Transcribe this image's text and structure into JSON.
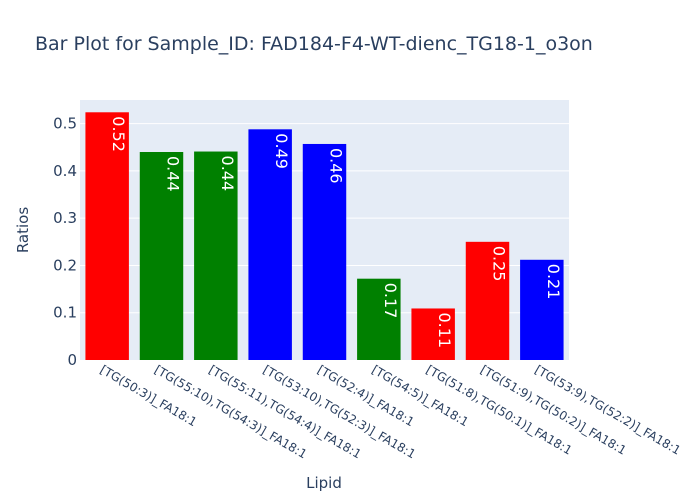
{
  "chart_data": {
    "type": "bar",
    "title": "Bar Plot for Sample_ID: FAD184-F4-WT-dienc_TG18-1_o3on",
    "xlabel": "Lipid",
    "ylabel": "Ratios",
    "ylim": [
      0,
      0.55
    ],
    "yticks": [
      0,
      0.1,
      0.2,
      0.3,
      0.4,
      0.5
    ],
    "yticklabels": [
      "0",
      "0.1",
      "0.2",
      "0.3",
      "0.4",
      "0.5"
    ],
    "grid": true,
    "categories": [
      "[TG(50:3)]_FA18:1",
      "[TG(55:10),TG(54:3)]_FA18:1",
      "[TG(55:11),TG(54:4)]_FA18:1",
      "[TG(53:10),TG(52:3)]_FA18:1",
      "[TG(52:4)]_FA18:1",
      "[TG(54:5)]_FA18:1",
      "[TG(51:8),TG(50:1)]_FA18:1",
      "[TG(51:9),TG(50:2)]_FA18:1",
      "[TG(53:9),TG(52:2)]_FA18:1"
    ],
    "values": [
      0.524,
      0.44,
      0.441,
      0.488,
      0.457,
      0.172,
      0.109,
      0.25,
      0.212
    ],
    "labels": [
      "0.52",
      "0.44",
      "0.44",
      "0.49",
      "0.46",
      "0.17",
      "0.11",
      "0.25",
      "0.21"
    ],
    "colors": [
      "#ff0000",
      "#008000",
      "#008000",
      "#0000ff",
      "#0000ff",
      "#008000",
      "#ff0000",
      "#ff0000",
      "#0000ff"
    ]
  },
  "style": {
    "plot_bg": "#e5ecf6",
    "grid_color": "#ffffff",
    "text_color": "#2a3f5f"
  }
}
